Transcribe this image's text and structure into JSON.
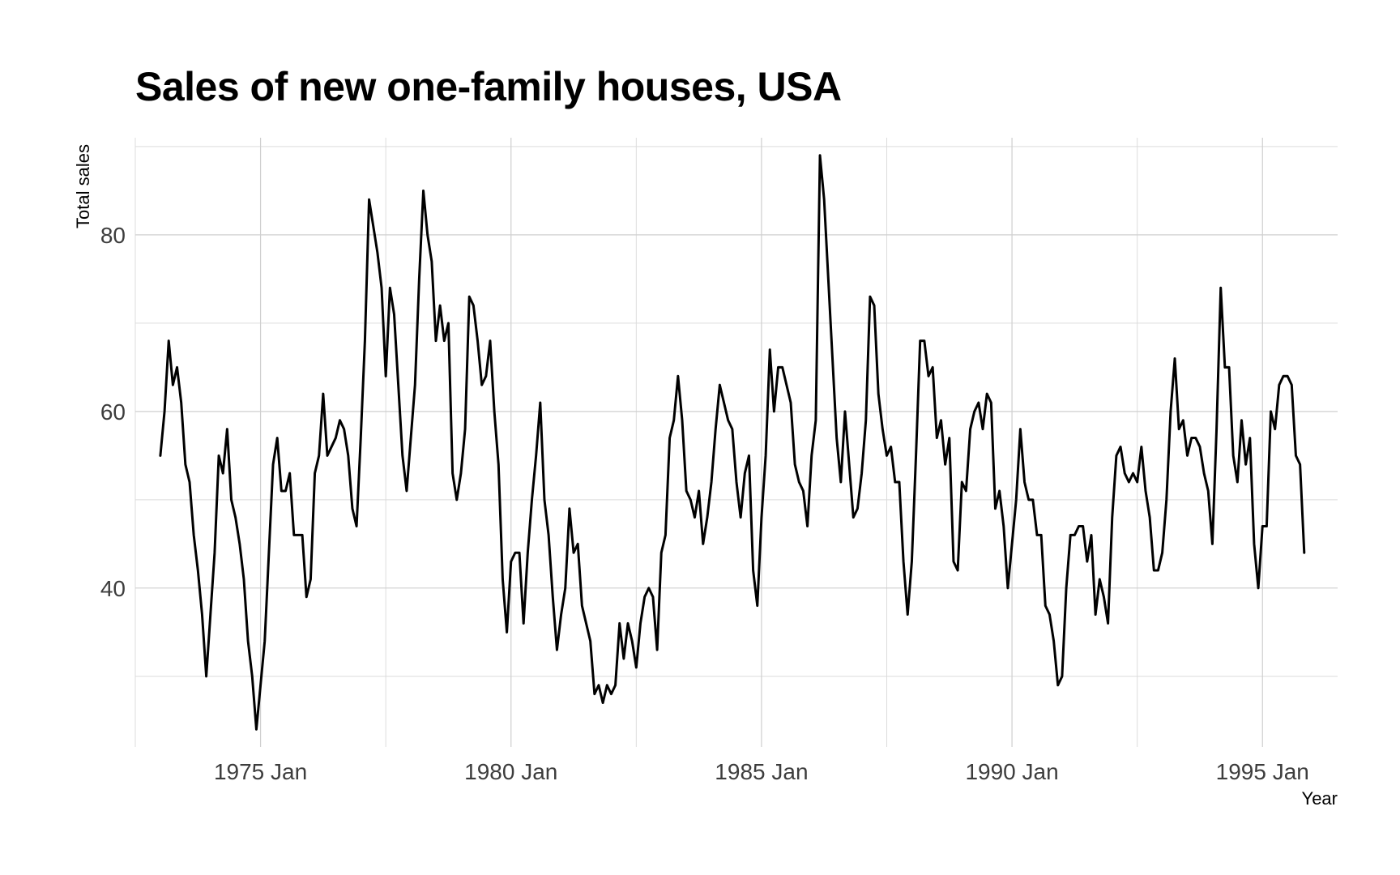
{
  "chart_data": {
    "type": "line",
    "title": "Sales of new one-family houses, USA",
    "xlabel": "Year",
    "ylabel": "Total sales",
    "x_start": "1973 Jan",
    "frequency": "monthly",
    "xlim": [
      "1972 Jul",
      "1996 Jul"
    ],
    "ylim": [
      22,
      91
    ],
    "xticks": [
      "1975 Jan",
      "1980 Jan",
      "1985 Jan",
      "1990 Jan",
      "1995 Jan"
    ],
    "yticks": [
      40,
      60,
      80
    ],
    "grid": true,
    "line_color": "#000000",
    "series": [
      {
        "values": [
          55,
          60,
          68,
          63,
          65,
          61,
          54,
          52,
          46,
          42,
          37,
          30,
          37,
          44,
          55,
          53,
          58,
          50,
          48,
          45,
          41,
          34,
          30,
          24,
          29,
          34,
          44,
          54,
          57,
          51,
          51,
          53,
          46,
          46,
          46,
          39,
          41,
          53,
          55,
          62,
          55,
          56,
          57,
          59,
          58,
          55,
          49,
          47,
          57,
          68,
          84,
          81,
          78,
          74,
          64,
          74,
          71,
          63,
          55,
          51,
          57,
          63,
          75,
          85,
          80,
          77,
          68,
          72,
          68,
          70,
          53,
          50,
          53,
          58,
          73,
          72,
          68,
          63,
          64,
          68,
          60,
          54,
          41,
          35,
          43,
          44,
          44,
          36,
          44,
          50,
          55,
          61,
          50,
          46,
          39,
          33,
          37,
          40,
          49,
          44,
          45,
          38,
          36,
          34,
          28,
          29,
          27,
          29,
          28,
          29,
          36,
          32,
          36,
          34,
          31,
          36,
          39,
          40,
          39,
          33,
          44,
          46,
          57,
          59,
          64,
          59,
          51,
          50,
          48,
          51,
          45,
          48,
          52,
          58,
          63,
          61,
          59,
          58,
          52,
          48,
          53,
          55,
          42,
          38,
          48,
          55,
          67,
          60,
          65,
          65,
          63,
          61,
          54,
          52,
          51,
          47,
          55,
          59,
          89,
          84,
          75,
          66,
          57,
          52,
          60,
          54,
          48,
          49,
          53,
          59,
          73,
          72,
          62,
          58,
          55,
          56,
          52,
          52,
          43,
          37,
          43,
          55,
          68,
          68,
          64,
          65,
          57,
          59,
          54,
          57,
          43,
          42,
          52,
          51,
          58,
          60,
          61,
          58,
          62,
          61,
          49,
          51,
          47,
          40,
          45,
          50,
          58,
          52,
          50,
          50,
          46,
          46,
          38,
          37,
          34,
          29,
          30,
          40,
          46,
          46,
          47,
          47,
          43,
          46,
          37,
          41,
          39,
          36,
          48,
          55,
          56,
          53,
          52,
          53,
          52,
          56,
          51,
          48,
          42,
          42,
          44,
          50,
          60,
          66,
          58,
          59,
          55,
          57,
          57,
          56,
          53,
          51,
          45,
          58,
          74,
          65,
          65,
          55,
          52,
          59,
          54,
          57,
          45,
          40,
          47,
          47,
          60,
          58,
          63,
          64,
          64,
          63,
          55,
          54,
          44
        ]
      }
    ]
  }
}
